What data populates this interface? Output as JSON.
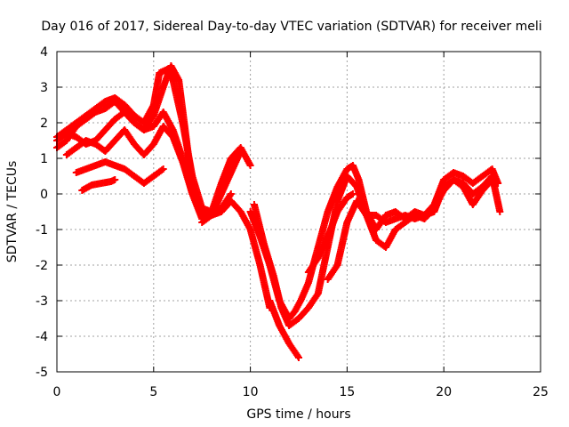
{
  "chart_data": {
    "type": "scatter",
    "title": "Day 016 of 2017, Sidereal Day-to-day VTEC variation (SDTVAR) for receiver meli",
    "xlabel": "GPS time / hours",
    "ylabel": "SDTVAR / TECUs",
    "xlim": [
      0,
      25
    ],
    "ylim": [
      -5,
      4
    ],
    "xticks": [
      0,
      5,
      10,
      15,
      20,
      25
    ],
    "yticks": [
      -5,
      -4,
      -3,
      -2,
      -1,
      0,
      1,
      2,
      3,
      4
    ],
    "xtick_labels": [
      "0",
      "5",
      "10",
      "15",
      "20",
      "25"
    ],
    "ytick_labels": [
      "-5",
      "-4",
      "-3",
      "-2",
      "-1",
      "0",
      "1",
      "2",
      "3",
      "4"
    ],
    "grid": true,
    "marker": "+",
    "color": "#ff0000",
    "series": [
      {
        "x": [
          0.0,
          0.5,
          1.0,
          1.5,
          2.0,
          2.5,
          3.0,
          3.5,
          4.0,
          4.5,
          5.0,
          5.3,
          5.7,
          6.0,
          6.5,
          7.0,
          7.5,
          8.0,
          8.5,
          9.0,
          9.5,
          10.0
        ],
        "y": [
          1.6,
          1.8,
          2.0,
          2.2,
          2.4,
          2.6,
          2.7,
          2.5,
          2.2,
          2.0,
          2.5,
          3.4,
          3.5,
          3.2,
          2.0,
          0.5,
          -0.4,
          -0.5,
          0.3,
          1.0,
          1.3,
          0.8
        ]
      },
      {
        "x": [
          0.0,
          0.5,
          1.0,
          1.5,
          2.0,
          2.5,
          3.0,
          3.5,
          4.0,
          4.5,
          5.0,
          5.5,
          5.9,
          6.3,
          6.7,
          7.0,
          7.5,
          8.0,
          8.5,
          9.0,
          9.5
        ],
        "y": [
          1.3,
          1.5,
          1.9,
          2.1,
          2.3,
          2.4,
          2.6,
          2.3,
          2.0,
          1.8,
          2.2,
          3.0,
          3.6,
          3.2,
          1.5,
          0.2,
          -0.5,
          -0.6,
          0.0,
          0.6,
          1.2
        ]
      },
      {
        "x": [
          0.0,
          0.5,
          1.0,
          1.5,
          2.0,
          2.5,
          3.0,
          3.5,
          4.0,
          4.5,
          5.0,
          5.5,
          6.0,
          6.5,
          7.0,
          7.5,
          8.0,
          8.5,
          9.0
        ],
        "y": [
          1.5,
          1.7,
          1.6,
          1.4,
          1.5,
          1.8,
          2.1,
          2.3,
          2.0,
          1.8,
          1.9,
          2.3,
          1.8,
          1.0,
          0.0,
          -0.7,
          -0.6,
          -0.4,
          0.0
        ]
      },
      {
        "x": [
          0.5,
          1.0,
          1.5,
          2.0,
          2.5,
          3.0,
          3.5,
          4.0,
          4.5,
          5.0,
          5.5,
          6.0,
          6.5,
          7.0
        ],
        "y": [
          1.1,
          1.3,
          1.5,
          1.4,
          1.2,
          1.5,
          1.8,
          1.4,
          1.1,
          1.4,
          1.9,
          1.6,
          0.9,
          0.0
        ]
      },
      {
        "x": [
          1.0,
          1.5,
          2.0,
          2.5,
          3.0,
          3.5,
          4.0,
          4.5,
          5.0,
          5.5
        ],
        "y": [
          0.6,
          0.7,
          0.8,
          0.9,
          0.8,
          0.7,
          0.5,
          0.3,
          0.5,
          0.7
        ]
      },
      {
        "x": [
          1.3,
          1.8,
          2.3,
          2.8,
          3.0
        ],
        "y": [
          0.1,
          0.25,
          0.3,
          0.35,
          0.4
        ]
      },
      {
        "x": [
          10.0,
          10.5,
          11.0,
          11.5,
          12.0,
          12.3,
          12.6,
          13.0,
          13.5,
          14.0,
          14.5,
          15.0,
          15.3,
          15.6,
          16.0,
          16.5,
          17.0,
          17.5,
          18.0,
          18.5,
          19.0,
          19.5,
          20.0,
          20.5,
          21.0,
          21.5,
          22.0,
          22.5,
          22.8
        ],
        "y": [
          -0.5,
          -1.2,
          -2.0,
          -3.0,
          -3.5,
          -3.3,
          -3.0,
          -2.5,
          -1.5,
          -0.5,
          0.2,
          0.7,
          0.8,
          0.4,
          -0.5,
          -1.0,
          -0.6,
          -0.5,
          -0.7,
          -0.5,
          -0.6,
          -0.3,
          0.4,
          0.6,
          0.5,
          0.3,
          0.5,
          0.7,
          0.3
        ]
      },
      {
        "x": [
          10.2,
          10.7,
          11.2,
          11.6,
          12.0,
          12.5,
          13.0,
          13.5,
          14.0,
          14.5,
          15.0,
          15.5,
          16.0,
          16.5,
          17.0,
          17.5,
          18.0,
          18.5,
          19.0,
          19.5,
          20.0,
          20.5,
          21.0,
          21.5,
          22.0,
          22.5,
          22.9
        ],
        "y": [
          -0.3,
          -1.4,
          -2.3,
          -3.2,
          -3.7,
          -3.5,
          -3.2,
          -2.8,
          -1.5,
          -0.2,
          0.5,
          0.2,
          -0.6,
          -1.3,
          -1.5,
          -1.0,
          -0.8,
          -0.6,
          -0.7,
          -0.4,
          0.1,
          0.4,
          0.3,
          0.0,
          0.2,
          0.5,
          -0.5
        ]
      },
      {
        "x": [
          11.0,
          11.5,
          12.0,
          12.5
        ],
        "y": [
          -3.0,
          -3.7,
          -4.2,
          -4.6
        ]
      },
      {
        "x": [
          14.0,
          14.5,
          15.0,
          15.5,
          16.0,
          16.5,
          17.0,
          17.5,
          18.0,
          18.5,
          19.0,
          19.5,
          20.0,
          20.5,
          21.0,
          21.5,
          22.0,
          22.5
        ],
        "y": [
          -2.4,
          -2.0,
          -0.8,
          -0.2,
          -0.6,
          -0.6,
          -0.8,
          -0.7,
          -0.6,
          -0.7,
          -0.6,
          -0.5,
          0.2,
          0.4,
          0.2,
          -0.3,
          0.1,
          0.4
        ]
      },
      {
        "x": [
          13.0,
          13.5,
          14.0,
          14.5,
          15.0,
          15.3
        ],
        "y": [
          -2.2,
          -1.8,
          -1.2,
          -0.5,
          -0.1,
          0.0
        ]
      },
      {
        "x": [
          7.5,
          8.0,
          8.5,
          9.0,
          9.5,
          10.0,
          10.5,
          11.0
        ],
        "y": [
          -0.8,
          -0.6,
          -0.5,
          -0.2,
          -0.5,
          -1.0,
          -2.0,
          -3.2
        ]
      }
    ]
  }
}
